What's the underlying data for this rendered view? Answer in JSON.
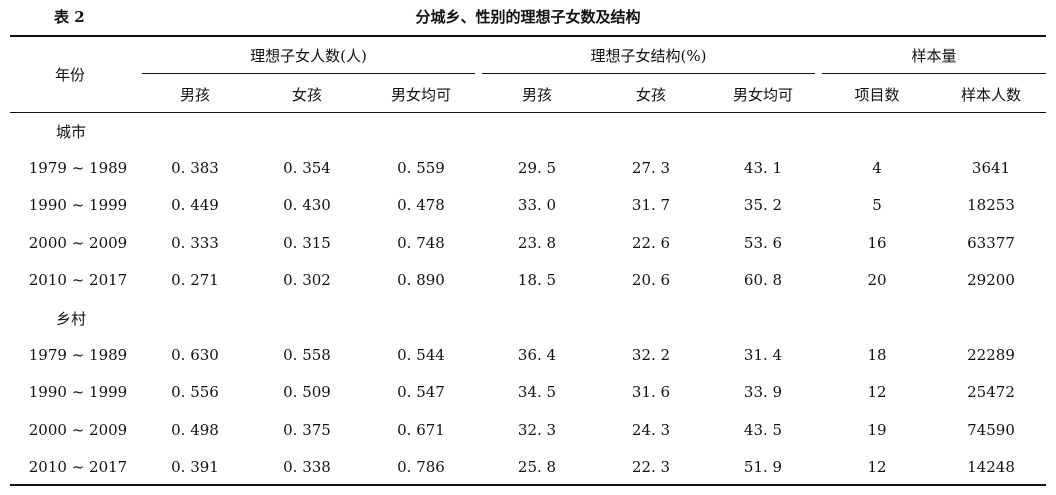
{
  "table": {
    "label": "表 2",
    "title": "分城乡、性别的理想子女数及结构",
    "header": {
      "year": "年份",
      "groups": [
        "理想子女人数(人)",
        "理想子女结构(%)",
        "样本量"
      ],
      "subcols": [
        "男孩",
        "女孩",
        "男女均可",
        "男孩",
        "女孩",
        "男女均可",
        "项目数",
        "样本人数"
      ]
    },
    "sections": [
      {
        "name": "城市",
        "rows": [
          [
            "1979 ~ 1989",
            "0. 383",
            "0. 354",
            "0. 559",
            "29. 5",
            "27. 3",
            "43. 1",
            "4",
            "3641"
          ],
          [
            "1990 ~ 1999",
            "0. 449",
            "0. 430",
            "0. 478",
            "33. 0",
            "31. 7",
            "35. 2",
            "5",
            "18253"
          ],
          [
            "2000 ~ 2009",
            "0. 333",
            "0. 315",
            "0. 748",
            "23. 8",
            "22. 6",
            "53. 6",
            "16",
            "63377"
          ],
          [
            "2010 ~ 2017",
            "0. 271",
            "0. 302",
            "0. 890",
            "18. 5",
            "20. 6",
            "60. 8",
            "20",
            "29200"
          ]
        ]
      },
      {
        "name": "乡村",
        "rows": [
          [
            "1979 ~ 1989",
            "0. 630",
            "0. 558",
            "0. 544",
            "36. 4",
            "32. 2",
            "31. 4",
            "18",
            "22289"
          ],
          [
            "1990 ~ 1999",
            "0. 556",
            "0. 509",
            "0. 547",
            "34. 5",
            "31. 6",
            "33. 9",
            "12",
            "25472"
          ],
          [
            "2000 ~ 2009",
            "0. 498",
            "0. 375",
            "0. 671",
            "32. 3",
            "24. 3",
            "43. 5",
            "19",
            "74590"
          ],
          [
            "2010 ~ 2017",
            "0. 391",
            "0. 338",
            "0. 786",
            "25. 8",
            "22. 3",
            "51. 9",
            "12",
            "14248"
          ]
        ]
      }
    ]
  }
}
